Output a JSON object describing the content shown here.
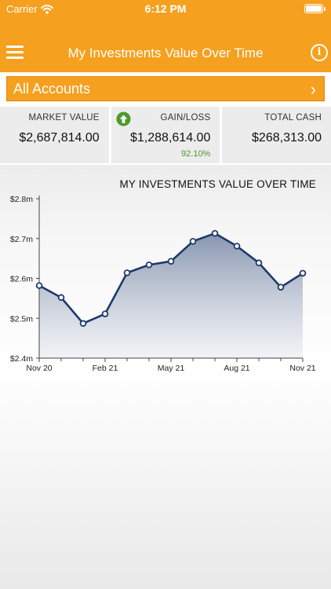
{
  "status_bar": {
    "carrier": "Carrier",
    "time": "6:12 PM"
  },
  "header": {
    "title": "My Investments Value Over Time",
    "menu_icon": "hamburger-menu-icon",
    "info_icon": "info-icon"
  },
  "accounts": {
    "label": "All Accounts",
    "chevron": "›"
  },
  "summary": {
    "market_value": {
      "label": "MARKET VALUE",
      "value": "$2,687,814.00"
    },
    "gain_loss": {
      "label": "GAIN/LOSS",
      "value": "$1,288,614.00",
      "percent": "92.10%",
      "icon": "arrow-up-circle-icon",
      "color": "#4c9a2a"
    },
    "total_cash": {
      "label": "TOTAL CASH",
      "value": "$268,313.00"
    }
  },
  "chart_data": {
    "type": "area",
    "title": "MY INVESTMENTS VALUE OVER TIME",
    "x_ticks": [
      "Nov 20",
      "Feb 21",
      "May 21",
      "Aug 21",
      "Nov 21"
    ],
    "y_ticks": [
      "$2.8m",
      "$2.7m",
      "$2.6m",
      "$2.5m",
      "$2.4m"
    ],
    "ylim": [
      2.4,
      2.8
    ],
    "y_unit": "$m",
    "x_range": [
      "2020-11",
      "2021-11"
    ],
    "points": [
      {
        "x": "2020-11",
        "y": 2.582
      },
      {
        "x": "2020-12",
        "y": 2.552
      },
      {
        "x": "2021-01",
        "y": 2.487
      },
      {
        "x": "2021-02",
        "y": 2.511
      },
      {
        "x": "2021-03",
        "y": 2.614
      },
      {
        "x": "2021-04",
        "y": 2.634
      },
      {
        "x": "2021-05",
        "y": 2.643
      },
      {
        "x": "2021-06",
        "y": 2.693
      },
      {
        "x": "2021-07",
        "y": 2.713
      },
      {
        "x": "2021-08",
        "y": 2.681
      },
      {
        "x": "2021-09",
        "y": 2.639
      },
      {
        "x": "2021-10",
        "y": 2.578
      },
      {
        "x": "2021-11",
        "y": 2.613
      }
    ],
    "line_color": "#1e3a6b",
    "fill_color": "#8a9ab5",
    "grid": false
  }
}
